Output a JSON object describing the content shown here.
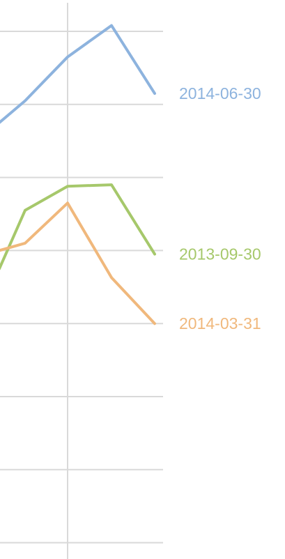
{
  "chart_data": {
    "type": "line",
    "title": "",
    "xlabel": "",
    "ylabel": "",
    "grid": true,
    "legend": "inline-right",
    "x": [
      0,
      1,
      2,
      3,
      4
    ],
    "ylim": [
      0,
      7.4
    ],
    "series": [
      {
        "name": "2014-06-30",
        "color": "#8db3de",
        "values": [
          5.75,
          6.05,
          6.65,
          7.08,
          6.15
        ]
      },
      {
        "name": "2013-09-30",
        "color": "#a6c86b",
        "values": [
          3.75,
          4.55,
          4.88,
          4.9,
          3.95
        ]
      },
      {
        "name": "2014-03-31",
        "color": "#f0b87c",
        "values": [
          4.0,
          4.1,
          4.65,
          3.63,
          3.0
        ]
      }
    ]
  }
}
